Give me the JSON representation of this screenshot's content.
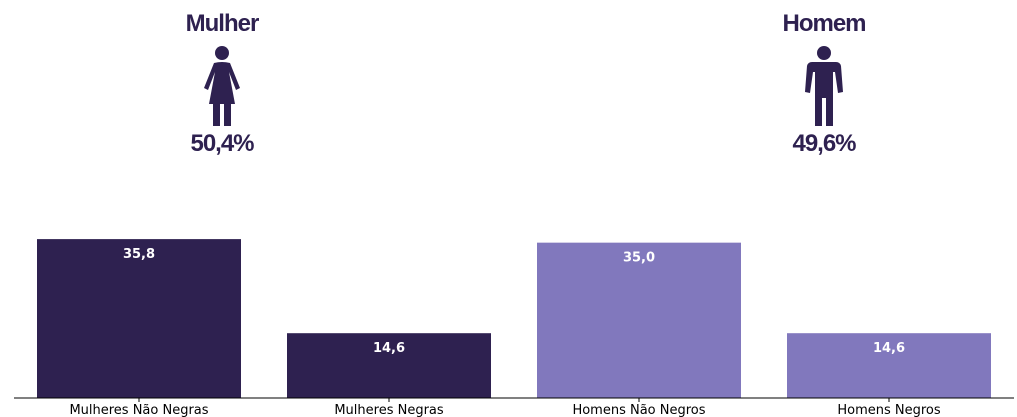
{
  "groups": [
    {
      "title": "Mulher",
      "percent": "50,4%",
      "icon": "woman-icon"
    },
    {
      "title": "Homem",
      "percent": "49,6%",
      "icon": "man-icon"
    }
  ],
  "colors": {
    "dark": "#2e2150",
    "light": "#8178bd",
    "label": "#ffffff",
    "axis": "#000000"
  },
  "chart_data": {
    "type": "bar",
    "categories": [
      "Mulheres Não Negras",
      "Mulheres Negras",
      "Homens Não Negros",
      "Homens Negros"
    ],
    "values": [
      35.8,
      14.6,
      35.0,
      14.6
    ],
    "data_labels": [
      "35,8",
      "14,6",
      "35,0",
      "14,6"
    ],
    "bar_colors": [
      "#2e2150",
      "#2e2150",
      "#8178bd",
      "#8178bd"
    ],
    "title": "",
    "xlabel": "",
    "ylabel": "",
    "ylim": [
      0,
      36.5
    ],
    "grid": false,
    "legend": "none"
  }
}
